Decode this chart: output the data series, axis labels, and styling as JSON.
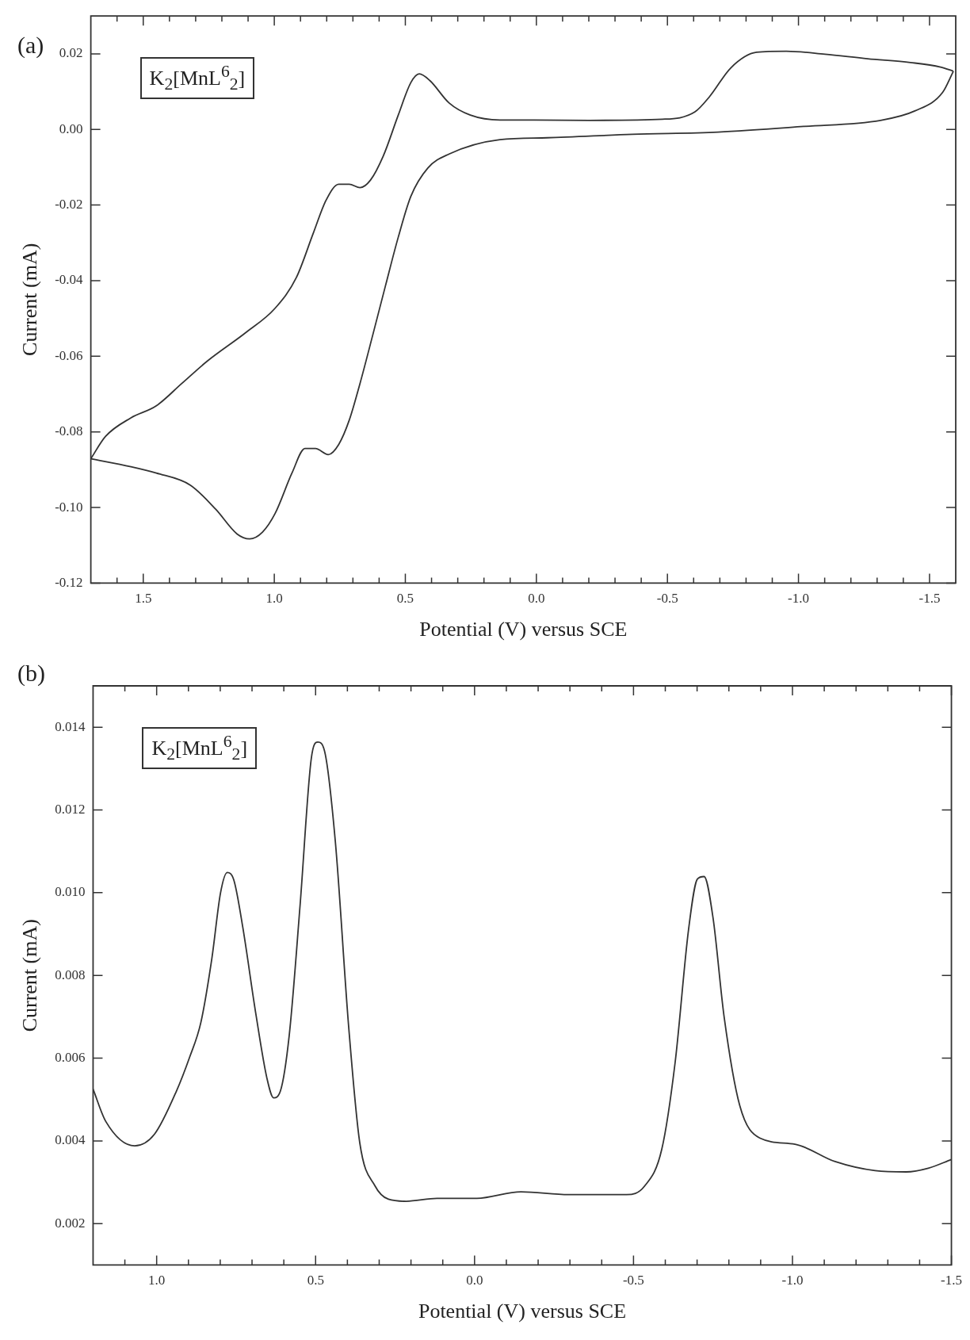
{
  "chart_data": [
    {
      "type": "line",
      "title": "(a)",
      "xlabel": "Potential (V) versus SCE",
      "ylabel": "Current (mA)",
      "annotations": [
        "K$_{2}$[MnL$^{6}$$_{2}$]"
      ],
      "xlim": [
        1.7,
        -1.6
      ],
      "ylim": [
        -0.12,
        0.03
      ],
      "xticks": [
        {
          "value": 1.6,
          "label": null
        },
        1.5,
        {
          "value": 1.4,
          "label": null
        },
        {
          "value": 1.3,
          "label": null
        },
        {
          "value": 1.2,
          "label": null
        },
        {
          "value": 1.1,
          "label": null
        },
        {
          "value": 1.0,
          "label": "1.0"
        },
        {
          "value": 0.9,
          "label": null
        },
        {
          "value": 0.8,
          "label": null
        },
        {
          "value": 0.7,
          "label": null
        },
        {
          "value": 0.6,
          "label": null
        },
        0.5,
        {
          "value": 0.4,
          "label": null
        },
        {
          "value": 0.3,
          "label": null
        },
        {
          "value": 0.2,
          "label": null
        },
        {
          "value": 0.1,
          "label": null
        },
        {
          "value": 0,
          "label": "0.0"
        },
        {
          "value": -0.1,
          "label": null
        },
        {
          "value": -0.2,
          "label": null
        },
        {
          "value": -0.3,
          "label": null
        },
        {
          "value": -0.4,
          "label": null
        },
        -0.5,
        {
          "value": -0.6,
          "label": null
        },
        {
          "value": -0.7,
          "label": null
        },
        {
          "value": -0.8,
          "label": null
        },
        {
          "value": -0.9,
          "label": null
        },
        {
          "value": -1.0,
          "label": "-1.0"
        },
        {
          "value": -1.1,
          "label": null
        },
        {
          "value": -1.2,
          "label": null
        },
        {
          "value": -1.3,
          "label": null
        },
        {
          "value": -1.4,
          "label": null
        },
        -1.5
      ],
      "yticks": [
        {
          "value": -0.12,
          "label": "-0.12"
        },
        {
          "value": -0.1,
          "label": "-0.10"
        },
        {
          "value": -0.08,
          "label": "-0.08"
        },
        {
          "value": -0.06,
          "label": "-0.06"
        },
        {
          "value": -0.04,
          "label": "-0.04"
        },
        {
          "value": -0.02,
          "label": "-0.02"
        },
        {
          "value": 0,
          "label": "0.00"
        },
        {
          "value": 0.02,
          "label": "0.02"
        }
      ],
      "series": [
        {
          "color": "#333333",
          "x": [
            1.7,
            1.644,
            1.547,
            1.45,
            1.353,
            1.256,
            1.11,
            0.997,
            0.916,
            0.851,
            0.803,
            0.754,
            0.714,
            0.673,
            0.633,
            0.584,
            0.527,
            0.479,
            0.447,
            0.406,
            0.333,
            0.252,
            0.139,
            0.01,
            -0.204,
            -0.481,
            -0.604,
            -0.661,
            -0.742,
            -0.84,
            -0.954,
            -1.101,
            -1.264,
            -1.427,
            -1.542,
            -1.591
          ],
          "values": [
            -0.0871,
            -0.0812,
            -0.0763,
            -0.0731,
            -0.0672,
            -0.0613,
            -0.0538,
            -0.0473,
            -0.0392,
            -0.0274,
            -0.0188,
            -0.0145,
            -0.0145,
            -0.0154,
            -0.0134,
            -0.007,
            0.0038,
            0.0124,
            0.0147,
            0.0129,
            0.007,
            0.0038,
            0.0025,
            0.0025,
            0.0024,
            0.0027,
            0.0046,
            0.0087,
            0.0163,
            0.0204,
            0.0207,
            0.0199,
            0.0187,
            0.0177,
            0.0165,
            0.0154
          ]
        },
        {
          "color": "#333333",
          "x": [
            -1.591,
            -1.55,
            -1.444,
            -1.313,
            -1.02,
            -0.693,
            -0.367,
            -0.041,
            0.139,
            0.333,
            0.414,
            0.479,
            0.527,
            0.576,
            0.624,
            0.673,
            0.714,
            0.754,
            0.794,
            0.843,
            0.883,
            0.932,
            0.997,
            1.045,
            1.094,
            1.142,
            1.223,
            1.32,
            1.45,
            1.547,
            1.7
          ],
          "values": [
            0.0154,
            0.0098,
            0.0049,
            0.0024,
            0.0008,
            -0.0007,
            -0.0013,
            -0.0022,
            -0.0027,
            -0.0065,
            -0.0102,
            -0.0177,
            -0.0285,
            -0.0414,
            -0.0543,
            -0.0672,
            -0.0769,
            -0.0833,
            -0.086,
            -0.0844,
            -0.0844,
            -0.0908,
            -0.1016,
            -0.1065,
            -0.1083,
            -0.107,
            -0.1005,
            -0.0941,
            -0.0909,
            -0.0892,
            -0.0871
          ]
        }
      ]
    },
    {
      "type": "line",
      "title": "(b)",
      "xlabel": "Potential (V) versus SCE",
      "ylabel": "Current (mA)",
      "annotations": [
        "K$_{2}$[MnL$^{6}$$_{2}$]"
      ],
      "xlim": [
        1.2,
        -1.5
      ],
      "ylim": [
        0.001,
        0.015
      ],
      "xticks": [
        {
          "value": 1.1,
          "label": null
        },
        {
          "value": 1.0,
          "label": "1.0"
        },
        {
          "value": 0.9,
          "label": null
        },
        {
          "value": 0.8,
          "label": null
        },
        {
          "value": 0.7,
          "label": null
        },
        {
          "value": 0.6,
          "label": null
        },
        0.5,
        {
          "value": 0.4,
          "label": null
        },
        {
          "value": 0.3,
          "label": null
        },
        {
          "value": 0.2,
          "label": null
        },
        {
          "value": 0.1,
          "label": null
        },
        {
          "value": 0,
          "label": "0.0"
        },
        {
          "value": -0.1,
          "label": null
        },
        {
          "value": -0.2,
          "label": null
        },
        {
          "value": -0.3,
          "label": null
        },
        {
          "value": -0.4,
          "label": null
        },
        -0.5,
        {
          "value": -0.6,
          "label": null
        },
        {
          "value": -0.7,
          "label": null
        },
        {
          "value": -0.8,
          "label": null
        },
        {
          "value": -0.9,
          "label": null
        },
        {
          "value": -1.0,
          "label": "-1.0"
        },
        {
          "value": -1.1,
          "label": null
        },
        {
          "value": -1.2,
          "label": null
        },
        {
          "value": -1.3,
          "label": null
        },
        {
          "value": -1.4,
          "label": null
        },
        -1.5
      ],
      "yticks": [
        0.002,
        0.004,
        0.006,
        0.008,
        {
          "value": 0.01,
          "label": "0.010"
        },
        0.012,
        0.014
      ],
      "series": [
        {
          "color": "#333333",
          "x": [
            1.2,
            1.16,
            1.069,
            1.007,
            0.938,
            0.896,
            0.861,
            0.826,
            0.799,
            0.778,
            0.757,
            0.729,
            0.688,
            0.653,
            0.632,
            0.611,
            0.583,
            0.549,
            0.514,
            0.493,
            0.472,
            0.438,
            0.396,
            0.361,
            0.313,
            0.271,
            0.215,
            0.118,
            -0.007,
            -0.146,
            -0.296,
            -0.478,
            -0.534,
            -0.589,
            -0.631,
            -0.673,
            -0.701,
            -0.722,
            -0.75,
            -0.785,
            -0.834,
            -0.897,
            -1.008,
            -1.134,
            -1.26,
            -1.358,
            -1.427,
            -1.5
          ],
          "values": [
            0.00525,
            0.00447,
            0.00388,
            0.00416,
            0.0052,
            0.00603,
            0.00686,
            0.00843,
            0.01,
            0.01049,
            0.0103,
            0.00916,
            0.00707,
            0.00551,
            0.00504,
            0.0052,
            0.00655,
            0.00968,
            0.01322,
            0.01364,
            0.01343,
            0.01124,
            0.00676,
            0.00395,
            0.00291,
            0.00259,
            0.00254,
            0.00261,
            0.00261,
            0.00277,
            0.0027,
            0.0027,
            0.0029,
            0.0038,
            0.0059,
            0.0091,
            0.01033,
            0.01039,
            0.0094,
            0.007,
            0.00486,
            0.00407,
            0.00392,
            0.0035,
            0.00328,
            0.00325,
            0.00334,
            0.00355
          ]
        }
      ]
    }
  ]
}
